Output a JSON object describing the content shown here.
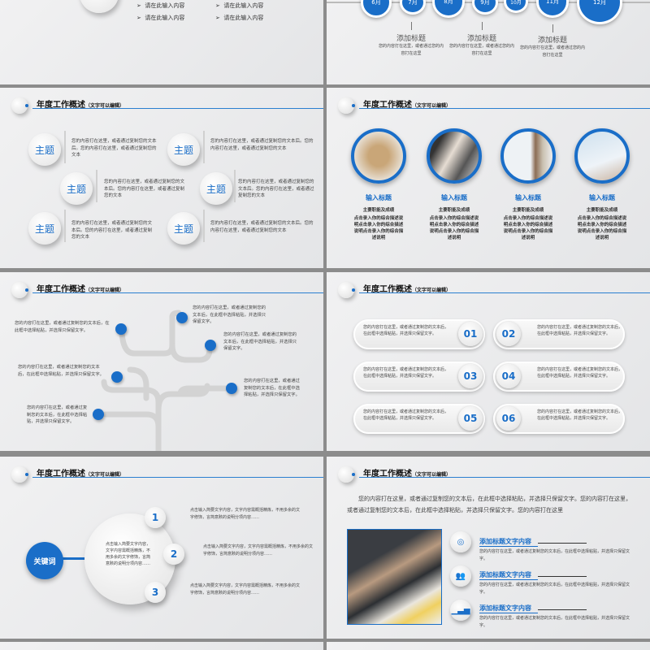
{
  "header": {
    "title": "年度工作概述",
    "subtitle": "（文字可以编辑）"
  },
  "slide_bullets": {
    "items": [
      "请在此输入内容",
      "请在此输入内容",
      "请在此输入内容",
      "请在此输入内容"
    ]
  },
  "timeline": {
    "months": [
      "6月",
      "7月",
      "8月",
      "9月",
      "10月",
      "11月",
      "12月"
    ],
    "notes": [
      {
        "title": "添加标题",
        "text": "您的内容打在这里，或者通过您的内容打在这里"
      },
      {
        "title": "添加标题",
        "text": "您的内容打在这里，或者通过您的内容打在这里"
      },
      {
        "title": "添加标题",
        "text": "您的内容打在这里，或者通过您的内容打在这里"
      }
    ]
  },
  "topics": {
    "label": "主题",
    "texts": [
      "您的内容打在这里，或者通过复制您的文本后。您的内容打在这里，或者通过复制您的文本",
      "您的内容打在这里，或者通过复制您的文本后。您的内容打在这里，或者通过复制您的文本",
      "您的内容打在这里，或者通过复制您的文本后。您的内容打在这里，或者通过复制您的文本",
      "您的内容打在这里，或者通过复制您的文本后。您的内容打在这里，或者通过复制您的文本",
      "您的内容打在这里，或者通过复制您的文本后。您的内容打在这里，或者通过复制您的文本",
      "您的内容打在这里，或者通过复制您的文本后。您的内容打在这里，或者通过复制您的文本"
    ]
  },
  "photos": {
    "items": [
      {
        "title": "输入标题",
        "sub": "主要职能及成绩",
        "text": "点击录入你的综合描述说明点击录入你的综合描述说明点击录入你的综合描述说明"
      },
      {
        "title": "输入标题",
        "sub": "主要职能及成绩",
        "text": "点击录入你的综合描述说明点击录入你的综合描述说明点击录入你的综合描述说明"
      },
      {
        "title": "输入标题",
        "sub": "主要职能及成绩",
        "text": "点击录入你的综合描述说明点击录入你的综合描述说明点击录入你的综合描述说明"
      },
      {
        "title": "输入标题",
        "sub": "主要职能及成绩",
        "text": "点击录入你的综合描述说明点击录入你的综合描述说明点击录入你的综合描述说明"
      }
    ]
  },
  "tree": {
    "texts": [
      "您的内容打在这里，或者通过复制您的文本后，在此框中选择粘贴，并选择只保留文字。",
      "您的内容打在这里，或者通过复制您的文本后，在此框中选择粘贴，并选择只保留文字。",
      "您的内容打在这里，或者通过复制您的文本后，在此框中选择粘贴，并选择只保留文字。",
      "您的内容打在这里，或者通过复制您的文本后，在此框中选择粘贴，并选择只保留文字。",
      "您的内容打在这里，或者通过复制您的文本后，在此框中选择粘贴，并选择只保留文字。",
      "您的内容打在这里，或者通过复制您的文本后，在此框中选择粘贴，并选择只保留文字。"
    ]
  },
  "pills": {
    "items": [
      {
        "num": "01",
        "text": "您的内容打在这里，或者通过复制您的文本后，在此框中选择粘贴，并选择只保留文字。"
      },
      {
        "num": "02",
        "text": "您的内容打在这里，或者通过复制您的文本后，在此框中选择粘贴，并选择只保留文字。"
      },
      {
        "num": "03",
        "text": "您的内容打在这里，或者通过复制您的文本后，在此框中选择粘贴，并选择只保留文字。"
      },
      {
        "num": "04",
        "text": "您的内容打在这里，或者通过复制您的文本后，在此框中选择粘贴，并选择只保留文字。"
      },
      {
        "num": "05",
        "text": "您的内容打在这里，或者通过复制您的文本后，在此框中选择粘贴，并选择只保留文字。"
      },
      {
        "num": "06",
        "text": "您的内容打在这里，或者通过复制您的文本后，在此框中选择粘贴，并选择只保留文字。"
      }
    ]
  },
  "keyword": {
    "label": "关键词",
    "center_text": "点击输入简要文字内容，文字内容需概括精炼，不用多余的文字修饰，言简意赅的说明分项内容……",
    "nums": [
      "1",
      "2",
      "3"
    ],
    "texts": [
      "点击输入简要文字内容，文字内容需概括精炼，不用多余的文字修饰，言简意赅的说明分项内容……",
      "点击输入简要文字内容，文字内容需概括精炼，不用多余的文字修饰，言简意赅的说明分项内容……",
      "点击输入简要文字内容，文字内容需概括精炼，不用多余的文字修饰，言简意赅的说明分项内容……"
    ]
  },
  "feature": {
    "intro": "您的内容打在这里，或者通过复制您的文本后，在此框中选择粘贴，并选择只保留文字。您的内容打在这里，或者通过复制您的文本后，在此框中选择粘贴，并选择只保留文字。您的内容打在这里",
    "items": [
      {
        "icon": "target-icon",
        "title": "添加标题文字内容",
        "text": "您的内容打在这里，或者通过复制您的文本后，在此框中选择粘贴，并选择只保留文字。"
      },
      {
        "icon": "people-icon",
        "title": "添加标题文字内容",
        "text": "您的内容打在这里，或者通过复制您的文本后，在此框中选择粘贴，并选择只保留文字。"
      },
      {
        "icon": "bar-chart-icon",
        "title": "添加标题文字内容",
        "text": "您的内容打在这里，或者通过复制您的文本后，在此框中选择粘贴，并选择只保留文字。"
      }
    ]
  },
  "colors": {
    "accent": "#1a6ec8",
    "background": "#e8e9eb"
  }
}
